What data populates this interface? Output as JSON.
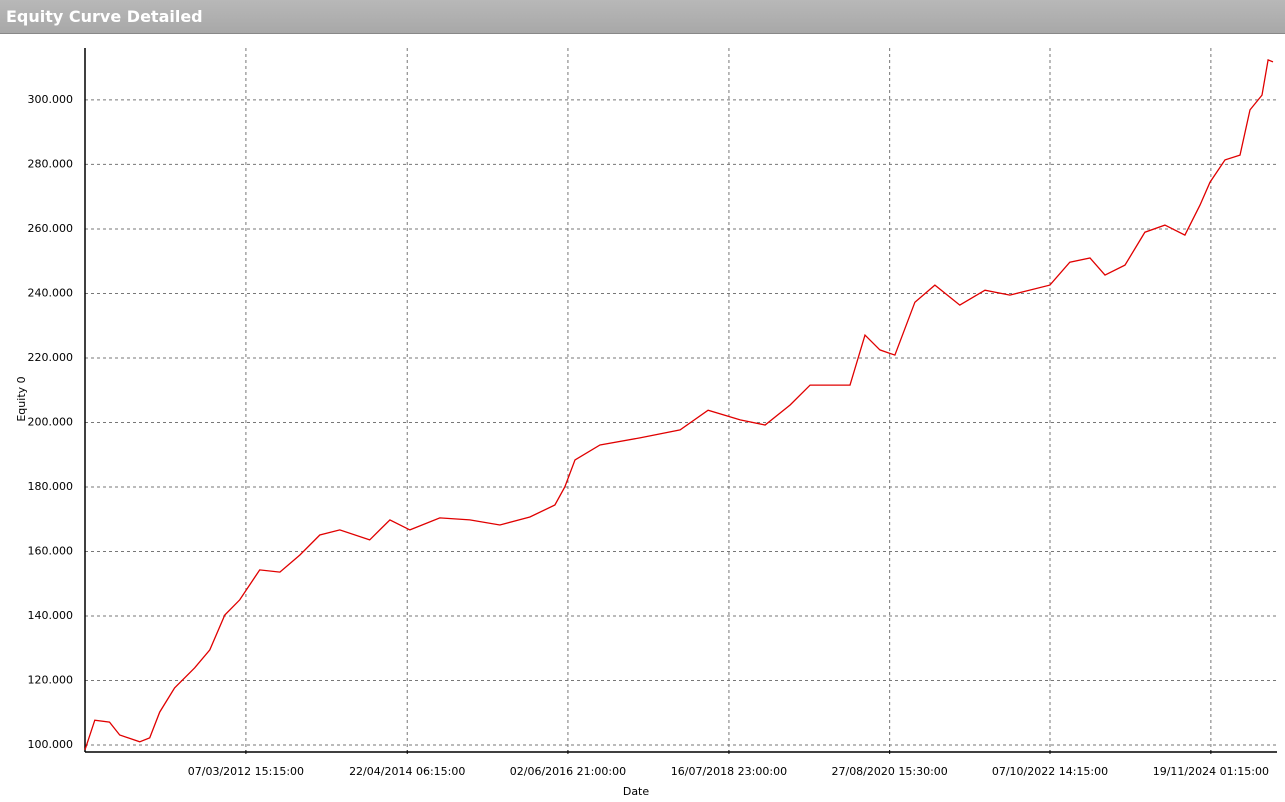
{
  "chart_data": {
    "type": "line",
    "title": "Equity Curve Detailed",
    "x_label": "Date",
    "y_label": "Equity 0",
    "x": [
      "2010-01-24",
      "2010-03-12",
      "2010-05-22",
      "2010-07-10",
      "2010-10-14",
      "2010-12-01",
      "2011-01-18",
      "2011-03-31",
      "2011-07-05",
      "2011-09-16",
      "2011-11-27",
      "2012-02-07",
      "2012-05-13",
      "2012-08-18",
      "2012-11-22",
      "2013-02-26",
      "2013-06-02",
      "2013-10-24",
      "2014-01-29",
      "2014-05-05",
      "2014-09-26",
      "2015-02-17",
      "2015-07-12",
      "2015-12-03",
      "2016-04-01",
      "2016-05-19",
      "2016-07-07",
      "2016-11-04",
      "2017-05-15",
      "2017-11-24",
      "2018-04-08",
      "2018-09-09",
      "2019-01-07",
      "2019-05-07",
      "2019-08-11",
      "2020-02-19",
      "2020-05-01",
      "2020-07-12",
      "2020-09-22",
      "2020-12-27",
      "2021-04-02",
      "2021-07-31",
      "2021-11-29",
      "2022-03-29",
      "2022-10-07",
      "2023-01-11",
      "2023-04-18",
      "2023-06-29",
      "2023-10-03",
      "2024-01-07",
      "2024-04-12",
      "2024-07-17",
      "2024-09-28",
      "2024-11-15",
      "2025-01-26",
      "2025-04-08",
      "2025-05-26",
      "2025-07-23",
      "2025-08-21",
      "2025-09-14"
    ],
    "series": [
      {
        "name": "Equity 0",
        "color": "#e00000",
        "values": [
          98500,
          107700,
          107100,
          103100,
          101000,
          102200,
          110200,
          117700,
          123900,
          129500,
          140300,
          145000,
          154300,
          153600,
          158900,
          165100,
          166700,
          163600,
          169800,
          166700,
          170400,
          169800,
          168200,
          170700,
          174400,
          180000,
          188400,
          193000,
          195200,
          197700,
          203800,
          200800,
          199200,
          205400,
          211600,
          211600,
          227100,
          222500,
          220900,
          237300,
          242600,
          236400,
          241000,
          239500,
          242600,
          249700,
          251000,
          245700,
          248800,
          259000,
          261200,
          258100,
          267400,
          274500,
          281400,
          282900,
          296900,
          301500,
          312400,
          311800
        ]
      }
    ],
    "xlim": [
      "2010-01-24",
      "2025-10-03"
    ],
    "xticks": [
      {
        "value": "2012-03-07T15:15:00",
        "label": "07/03/2012 15:15:00"
      },
      {
        "value": "2014-04-22T06:15:00",
        "label": "22/04/2014 06:15:00"
      },
      {
        "value": "2016-06-02T21:00:00",
        "label": "02/06/2016 21:00:00"
      },
      {
        "value": "2018-07-16T23:00:00",
        "label": "16/07/2018 23:00:00"
      },
      {
        "value": "2020-08-27T15:30:00",
        "label": "27/08/2020 15:30:00"
      },
      {
        "value": "2022-10-07T14:15:00",
        "label": "07/10/2022 14:15:00"
      },
      {
        "value": "2024-11-19T01:15:00",
        "label": "19/11/2024 01:15:00"
      }
    ],
    "ylim": [
      98450,
      316100
    ],
    "yticks": [
      {
        "value": 100000,
        "label": "100.000"
      },
      {
        "value": 120000,
        "label": "120.000"
      },
      {
        "value": 140000,
        "label": "140.000"
      },
      {
        "value": 160000,
        "label": "160.000"
      },
      {
        "value": 180000,
        "label": "180.000"
      },
      {
        "value": 200000,
        "label": "200.000"
      },
      {
        "value": 220000,
        "label": "220.000"
      },
      {
        "value": 240000,
        "label": "240.000"
      },
      {
        "value": 260000,
        "label": "260.000"
      },
      {
        "value": 280000,
        "label": "280.000"
      },
      {
        "value": 300000,
        "label": "300.000"
      }
    ],
    "grid": true
  }
}
